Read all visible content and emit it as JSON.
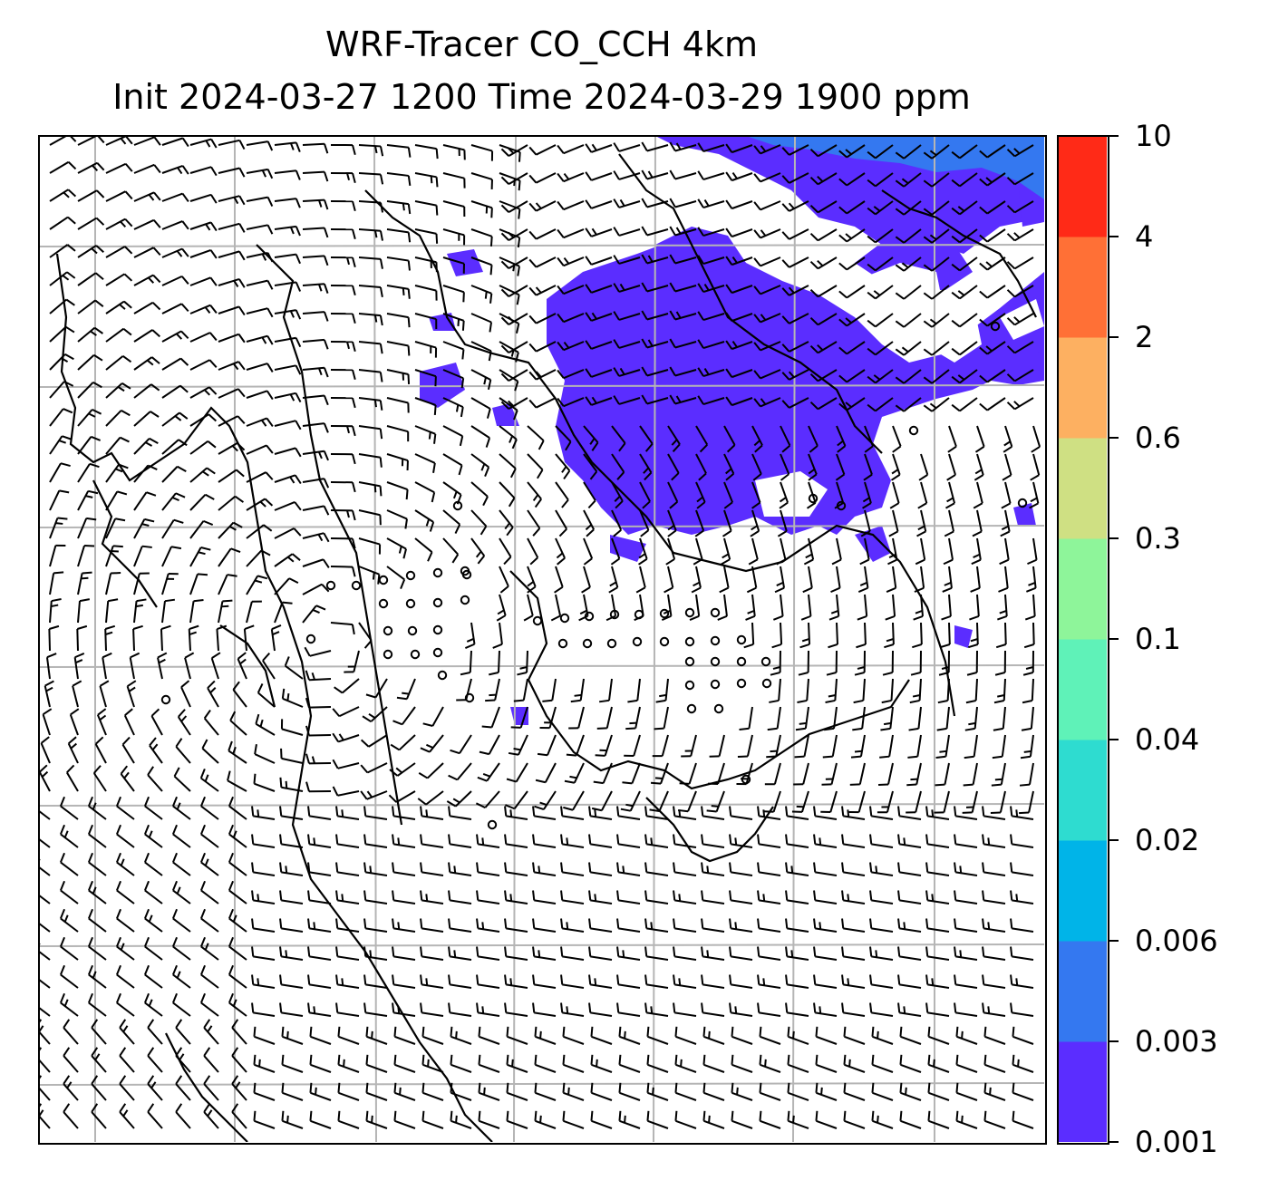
{
  "title": {
    "line1": "WRF-Tracer CO_CCH 4km",
    "line2": "Init 2024-03-27 1200 Time 2024-03-29 1900 ppm"
  },
  "chart_data": {
    "type": "heatmap",
    "title": "WRF-Tracer CO_CCH 4km",
    "subtitle": "Init 2024-03-27 1200 Time 2024-03-29 1900 ppm",
    "units": "ppm",
    "colorbar": {
      "levels": [
        0.001,
        0.003,
        0.006,
        0.02,
        0.04,
        0.1,
        0.3,
        0.6,
        2,
        4,
        10
      ],
      "tick_labels": [
        "0.001",
        "0.003",
        "0.006",
        "0.02",
        "0.04",
        "0.1",
        "0.3",
        "0.6",
        "2",
        "4",
        "10"
      ],
      "colors": [
        "#5b2dff",
        "#3478f0",
        "#00b4e8",
        "#2edcd0",
        "#5ff2b8",
        "#8ef59a",
        "#cfe083",
        "#fdb061",
        "#ff7036",
        "#ff2a17"
      ]
    },
    "plume_color": "#5b2dff",
    "plume_high_color": "#3478f0",
    "overlay": "wind barbs",
    "gridlines": true,
    "coastlines": true
  }
}
